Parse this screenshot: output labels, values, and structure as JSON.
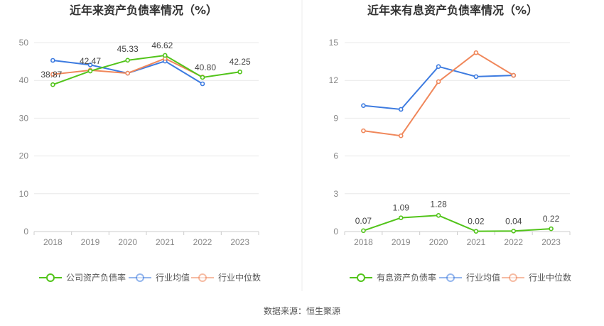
{
  "source_text": "数据来源：恒生聚源",
  "chart_data": [
    {
      "type": "line",
      "title": "近年来资产负债率情况（%）",
      "categories": [
        "2018",
        "2019",
        "2020",
        "2021",
        "2022",
        "2023"
      ],
      "ylim": [
        0,
        50
      ],
      "yticks": [
        "0",
        "10",
        "20",
        "30",
        "40",
        "50"
      ],
      "grid": true,
      "legend_position": "bottom",
      "series": [
        {
          "name": "公司资产负债率",
          "color": "#52c41a",
          "values": [
            38.87,
            42.47,
            45.33,
            46.62,
            40.8,
            42.25
          ],
          "labels": [
            "38.87",
            "42.47",
            "45.33",
            "46.62",
            "40.80",
            "42.25"
          ]
        },
        {
          "name": "行业均值",
          "color": "#3d7be0",
          "values": [
            45.3,
            44.1,
            41.9,
            45.1,
            39.1,
            null
          ]
        },
        {
          "name": "行业中位数",
          "color": "#f0875a",
          "values": [
            41.6,
            42.7,
            41.9,
            45.8,
            40.9,
            null
          ]
        }
      ]
    },
    {
      "type": "line",
      "title": "近年来有息资产负债率情况（%）",
      "categories": [
        "2018",
        "2019",
        "2020",
        "2021",
        "2022",
        "2023"
      ],
      "ylim": [
        0,
        15
      ],
      "yticks": [
        "0",
        "3",
        "6",
        "9",
        "12",
        "15"
      ],
      "grid": true,
      "legend_position": "bottom",
      "series": [
        {
          "name": "有息资产负债率",
          "color": "#52c41a",
          "values": [
            0.07,
            1.09,
            1.28,
            0.02,
            0.04,
            0.22
          ],
          "labels": [
            "0.07",
            "1.09",
            "1.28",
            "0.02",
            "0.04",
            "0.22"
          ]
        },
        {
          "name": "行业均值",
          "color": "#3d7be0",
          "values": [
            10.0,
            9.7,
            13.1,
            12.3,
            12.4,
            null
          ]
        },
        {
          "name": "行业中位数",
          "color": "#f0875a",
          "values": [
            8.0,
            7.6,
            11.9,
            14.2,
            12.4,
            null
          ]
        }
      ]
    }
  ]
}
